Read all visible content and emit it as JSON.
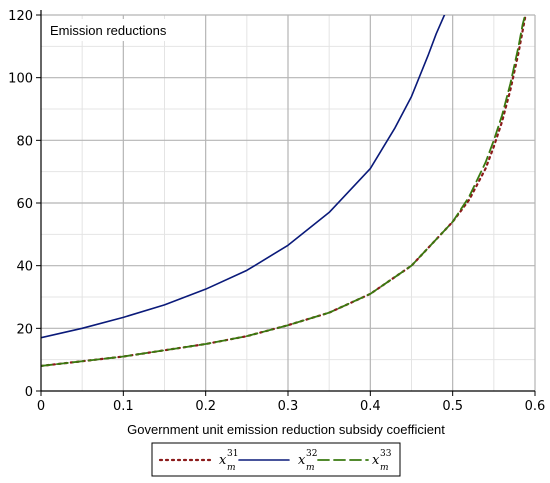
{
  "chart_data": {
    "type": "line",
    "title": "Emission reductions",
    "xlabel": "Government unit emission reduction subsidy coefficient",
    "ylabel": "",
    "xlim": [
      0,
      0.6
    ],
    "ylim": [
      0,
      120
    ],
    "xticks": [
      "0",
      "0.1",
      "0.2",
      "0.3",
      "0.4",
      "0.5",
      "0.6"
    ],
    "yticks": [
      "0",
      "20",
      "40",
      "60",
      "80",
      "100",
      "120"
    ],
    "grid": true,
    "legend_position": "bottom",
    "series": [
      {
        "name": "x_m^31",
        "label_base": "x",
        "label_sup": "31",
        "label_sub": "m",
        "style": "dotted",
        "color": "#8B1A1A",
        "x": [
          0,
          0.05,
          0.1,
          0.15,
          0.2,
          0.25,
          0.3,
          0.35,
          0.4,
          0.45,
          0.5,
          0.52,
          0.54,
          0.55,
          0.56,
          0.57,
          0.58,
          0.585,
          0.59
        ],
        "y": [
          8,
          9.5,
          11,
          13,
          15,
          17.5,
          21,
          25,
          31,
          40,
          54,
          61,
          71,
          78,
          86,
          96,
          108,
          115,
          122
        ]
      },
      {
        "name": "x_m^32",
        "label_base": "x",
        "label_sup": "32",
        "label_sub": "m",
        "style": "solid",
        "color": "#0A1A7A",
        "x": [
          0,
          0.05,
          0.1,
          0.15,
          0.2,
          0.25,
          0.3,
          0.35,
          0.4,
          0.43,
          0.45,
          0.47,
          0.48,
          0.49,
          0.495
        ],
        "y": [
          17,
          20,
          23.5,
          27.5,
          32.5,
          38.5,
          46.5,
          57,
          71,
          84,
          94,
          107,
          114,
          120,
          122
        ]
      },
      {
        "name": "x_m^33",
        "label_base": "x",
        "label_sup": "33",
        "label_sub": "m",
        "style": "dashed",
        "color": "#3A7A10",
        "x": [
          0,
          0.05,
          0.1,
          0.15,
          0.2,
          0.25,
          0.3,
          0.35,
          0.4,
          0.45,
          0.5,
          0.52,
          0.54,
          0.55,
          0.56,
          0.57,
          0.58,
          0.585,
          0.59
        ],
        "y": [
          8,
          9.5,
          11,
          13,
          15,
          17.5,
          21,
          25,
          31,
          40,
          54,
          62,
          73,
          80,
          88,
          98,
          110,
          117,
          122
        ]
      }
    ]
  }
}
